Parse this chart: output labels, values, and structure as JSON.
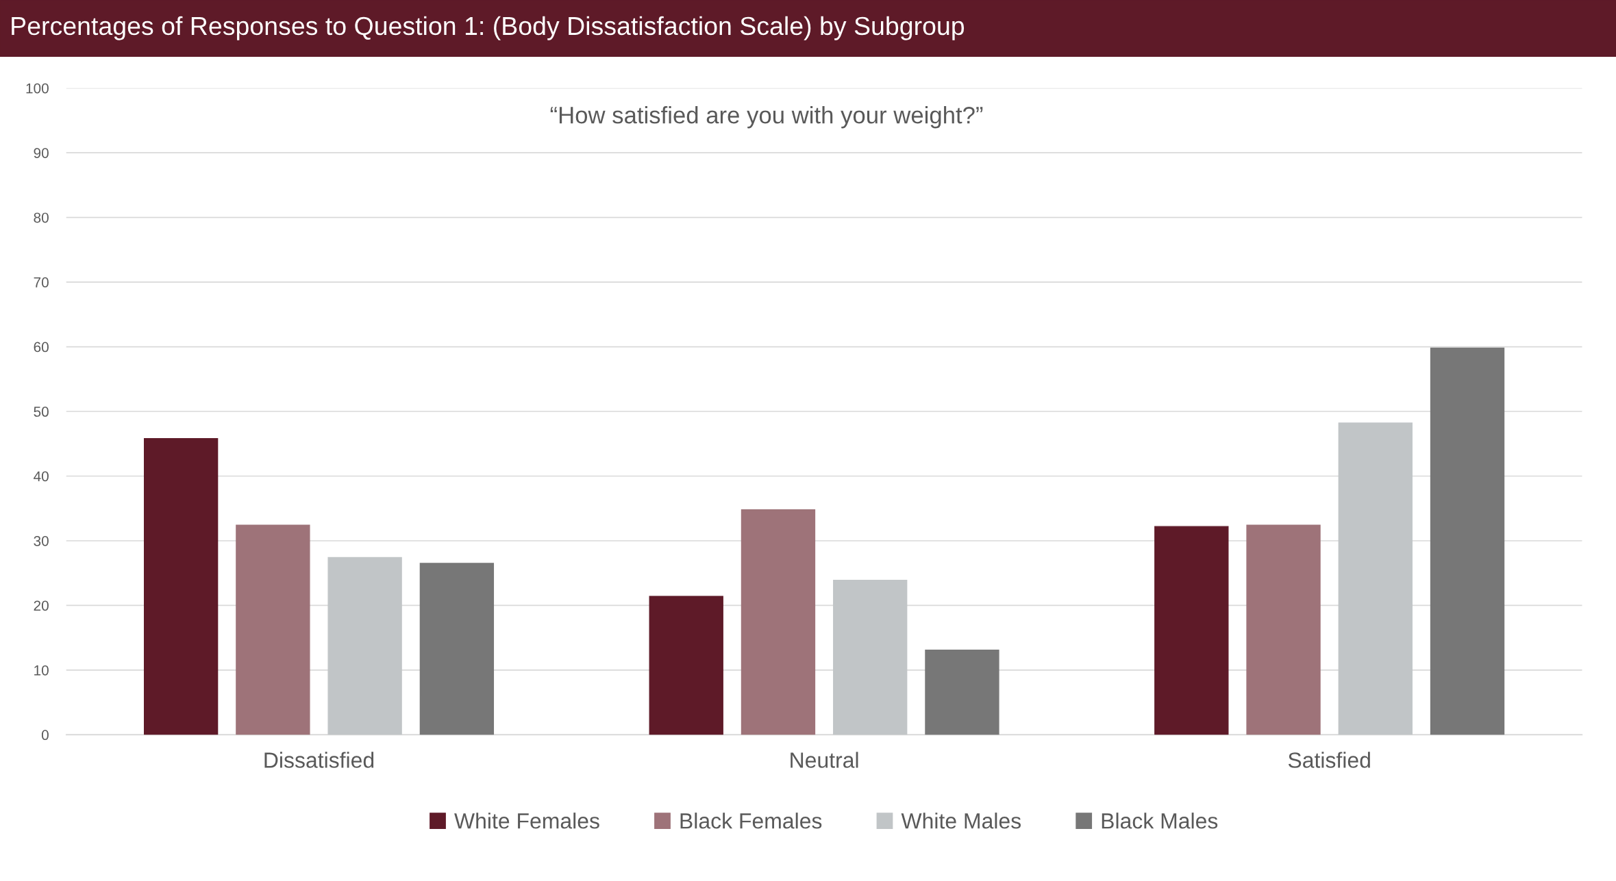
{
  "chart_data": {
    "type": "bar",
    "title": "Percentages of Responses to Question 1: (Body Dissatisfaction Scale) by Subgroup",
    "subtitle": "“How satisfied are you with your weight?”",
    "categories": [
      "Dissatisfied",
      "Neutral",
      "Satisfied"
    ],
    "series": [
      {
        "name": "White Females",
        "color": "#5e1a28",
        "values": [
          45.8,
          21.4,
          32.2
        ]
      },
      {
        "name": "Black Females",
        "color": "#9e7379",
        "values": [
          32.4,
          34.8,
          32.4
        ]
      },
      {
        "name": "White Males",
        "color": "#c1c5c7",
        "values": [
          27.4,
          23.9,
          48.2
        ]
      },
      {
        "name": "Black Males",
        "color": "#777777",
        "values": [
          26.5,
          13.1,
          59.8
        ]
      }
    ],
    "ylim": [
      0,
      100
    ],
    "yticks": [
      0,
      10,
      20,
      30,
      40,
      50,
      60,
      70,
      80,
      90,
      100
    ],
    "grid": "y",
    "legend": "bottom"
  }
}
